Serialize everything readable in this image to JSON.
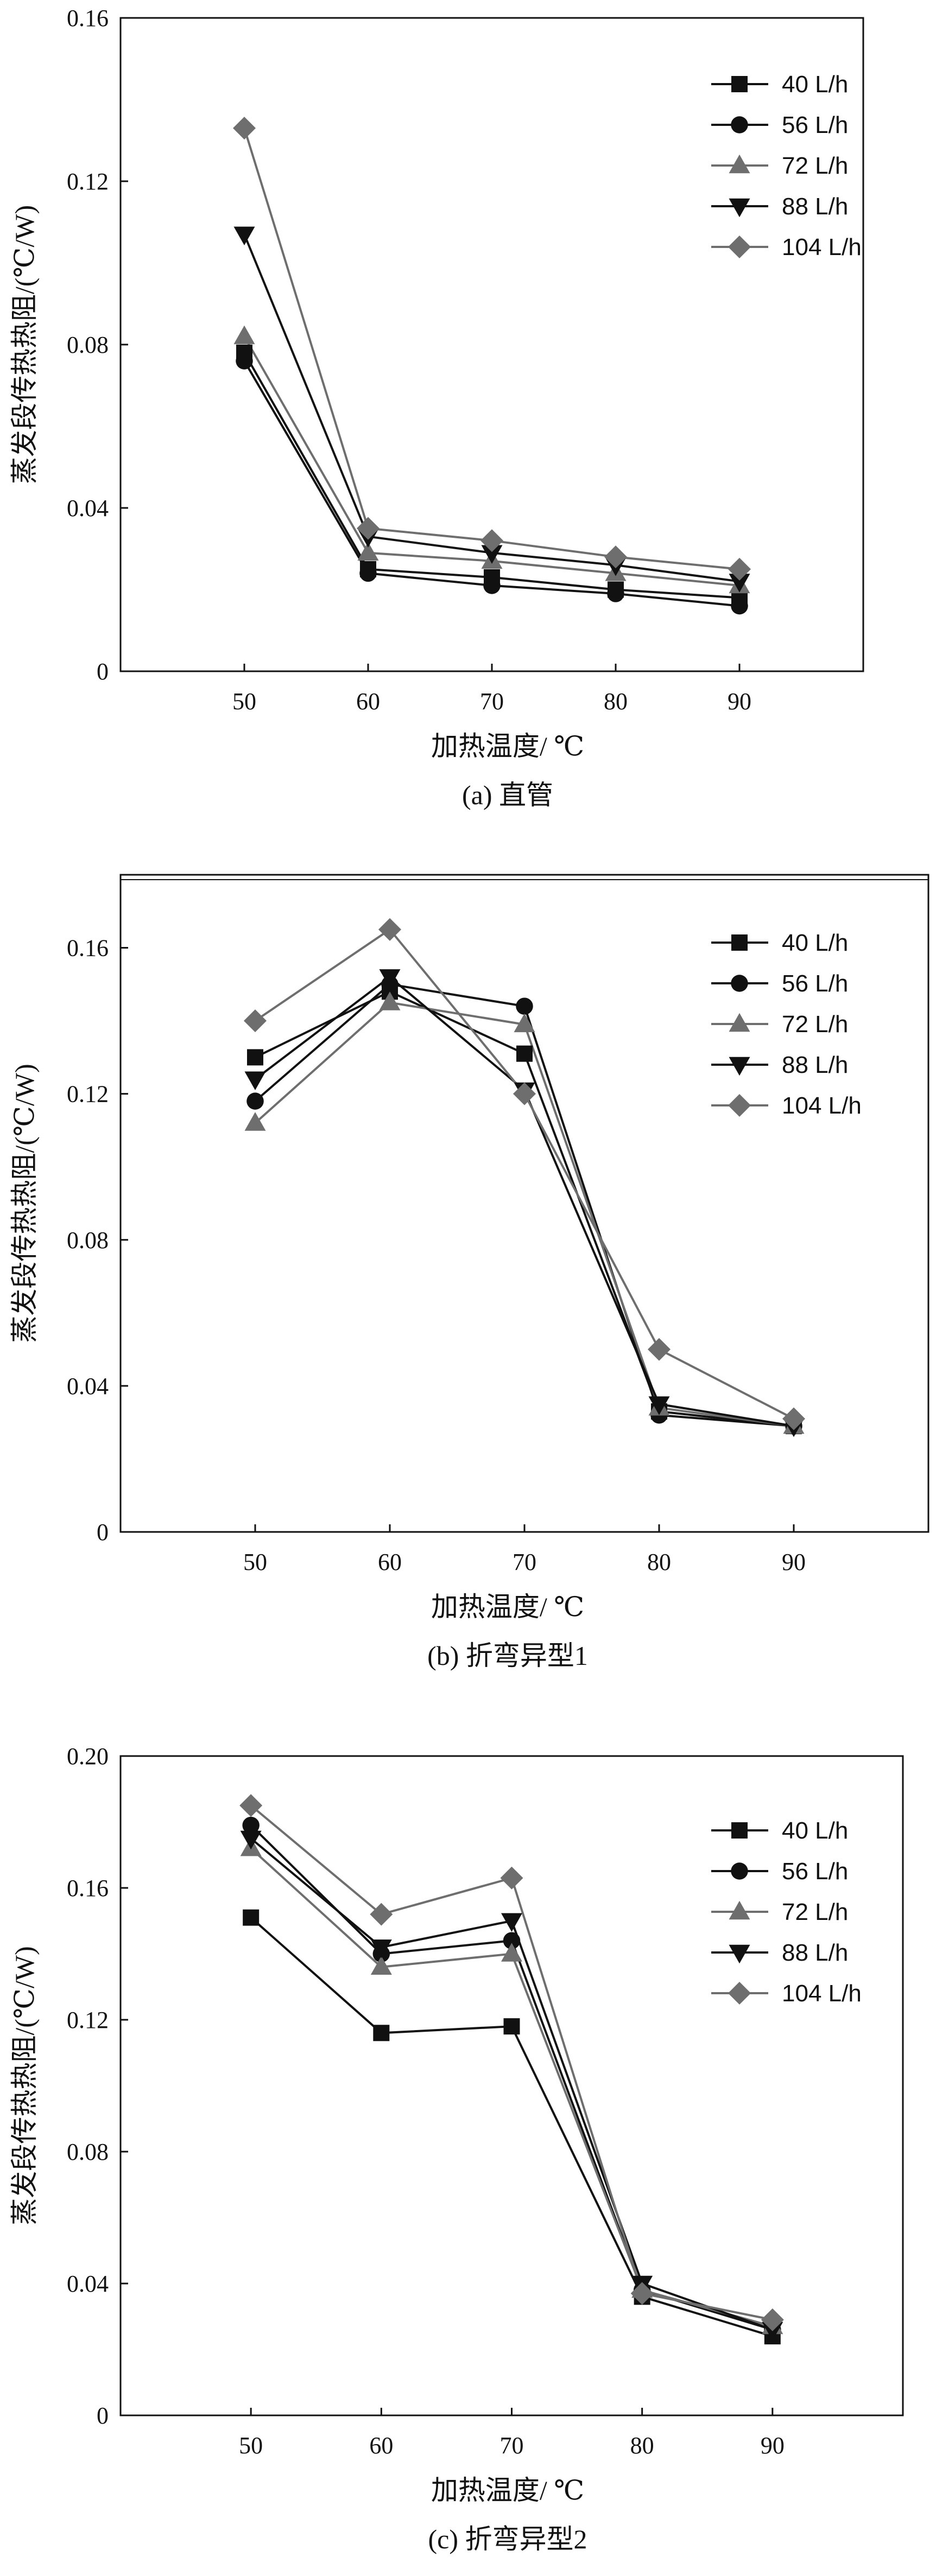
{
  "chart_data": [
    {
      "type": "line",
      "caption": "(a) 直管",
      "xlabel": "加热温度/ ℃",
      "ylabel": "蒸发段传热热阻/(℃/W)",
      "x": [
        50,
        60,
        70,
        80,
        90
      ],
      "xlim": [
        40,
        100
      ],
      "ylim": [
        0,
        0.16
      ],
      "yticks": [
        "0",
        "0.04",
        "0.08",
        "0.12",
        "0.16"
      ],
      "xticks": [
        "50",
        "60",
        "70",
        "80",
        "90"
      ],
      "legend_position": "top-right",
      "series": [
        {
          "name": "40 L/h",
          "color": "#111111",
          "marker": "square",
          "values": [
            0.078,
            0.025,
            0.023,
            0.02,
            0.018
          ]
        },
        {
          "name": "56 L/h",
          "color": "#111111",
          "marker": "circle",
          "values": [
            0.076,
            0.024,
            0.021,
            0.019,
            0.016
          ]
        },
        {
          "name": "72 L/h",
          "color": "#6e6e6e",
          "marker": "triangle-up",
          "values": [
            0.082,
            0.029,
            0.027,
            0.024,
            0.021
          ]
        },
        {
          "name": "88 L/h",
          "color": "#111111",
          "marker": "triangle-down",
          "values": [
            0.107,
            0.033,
            0.029,
            0.026,
            0.022
          ]
        },
        {
          "name": "104 L/h",
          "color": "#6e6e6e",
          "marker": "diamond",
          "values": [
            0.133,
            0.035,
            0.032,
            0.028,
            0.025
          ]
        }
      ]
    },
    {
      "type": "line",
      "caption": "(b) 折弯异型1",
      "xlabel": "加热温度/ ℃",
      "ylabel": "蒸发段传热热阻/(℃/W)",
      "x": [
        50,
        60,
        70,
        80,
        90
      ],
      "xlim": [
        40,
        100
      ],
      "ylim": [
        0,
        0.18
      ],
      "yticks": [
        "0",
        "0.04",
        "0.08",
        "0.12",
        "0.16"
      ],
      "xticks": [
        "50",
        "60",
        "70",
        "80",
        "90"
      ],
      "legend_position": "top-right",
      "series": [
        {
          "name": "40 L/h",
          "color": "#111111",
          "marker": "square",
          "values": [
            0.13,
            0.148,
            0.131,
            0.033,
            0.029
          ]
        },
        {
          "name": "56 L/h",
          "color": "#111111",
          "marker": "circle",
          "values": [
            0.118,
            0.15,
            0.144,
            0.032,
            0.029
          ]
        },
        {
          "name": "72 L/h",
          "color": "#6e6e6e",
          "marker": "triangle-up",
          "values": [
            0.112,
            0.145,
            0.139,
            0.034,
            0.029
          ]
        },
        {
          "name": "88 L/h",
          "color": "#111111",
          "marker": "triangle-down",
          "values": [
            0.124,
            0.152,
            0.121,
            0.035,
            0.029
          ]
        },
        {
          "name": "104 L/h",
          "color": "#6e6e6e",
          "marker": "diamond",
          "values": [
            0.14,
            0.165,
            0.12,
            0.05,
            0.031
          ]
        }
      ]
    },
    {
      "type": "line",
      "caption": "(c) 折弯异型2",
      "xlabel": "加热温度/ ℃",
      "ylabel": "蒸发段传热热阻/(℃/W)",
      "x": [
        50,
        60,
        70,
        80,
        90
      ],
      "xlim": [
        40,
        100
      ],
      "ylim": [
        0,
        0.2
      ],
      "yticks": [
        "0",
        "0.04",
        "0.08",
        "0.12",
        "0.16",
        "0.20"
      ],
      "xticks": [
        "50",
        "60",
        "70",
        "80",
        "90"
      ],
      "legend_position": "top-right",
      "series": [
        {
          "name": "40 L/h",
          "color": "#111111",
          "marker": "square",
          "values": [
            0.151,
            0.116,
            0.118,
            0.036,
            0.024
          ]
        },
        {
          "name": "56 L/h",
          "color": "#111111",
          "marker": "circle",
          "values": [
            0.179,
            0.14,
            0.144,
            0.038,
            0.026
          ]
        },
        {
          "name": "72 L/h",
          "color": "#6e6e6e",
          "marker": "triangle-up",
          "values": [
            0.172,
            0.136,
            0.14,
            0.038,
            0.027
          ]
        },
        {
          "name": "88 L/h",
          "color": "#111111",
          "marker": "triangle-down",
          "values": [
            0.175,
            0.142,
            0.15,
            0.04,
            0.026
          ]
        },
        {
          "name": "104 L/h",
          "color": "#6e6e6e",
          "marker": "diamond",
          "values": [
            0.185,
            0.152,
            0.163,
            0.037,
            0.029
          ]
        }
      ]
    }
  ]
}
